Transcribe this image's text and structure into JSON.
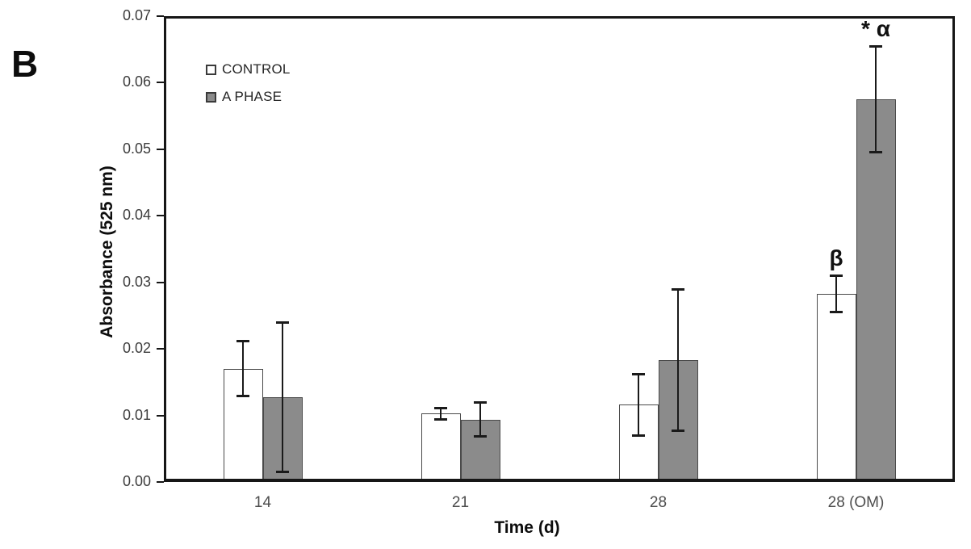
{
  "panel_label": "B",
  "chart_data": {
    "type": "bar",
    "title": "",
    "xlabel": "Time (d)",
    "ylabel": "Absorbance (525 nm)",
    "categories": [
      "14",
      "21",
      "28",
      "28 (OM)"
    ],
    "series": [
      {
        "name": "CONTROL",
        "fill": "#ffffff",
        "values": [
          0.017,
          0.0103,
          0.0116,
          0.0283
        ],
        "errors": [
          0.0042,
          0.0009,
          0.0047,
          0.0028
        ],
        "annotations": [
          "",
          "",
          "",
          "β"
        ]
      },
      {
        "name": "A PHASE",
        "fill": "#8b8b8b",
        "values": [
          0.0127,
          0.0094,
          0.0183,
          0.0575
        ],
        "errors": [
          0.0113,
          0.0026,
          0.0107,
          0.008
        ],
        "annotations": [
          "",
          "",
          "",
          "* α"
        ]
      }
    ],
    "ylim": [
      0,
      0.07
    ],
    "ytick_step": 0.01,
    "ytick_labels": [
      "0.00",
      "0.01",
      "0.02",
      "0.03",
      "0.04",
      "0.05",
      "0.06",
      "0.07"
    ],
    "legend_position": "top-left-inside",
    "grid": false
  },
  "colors": {
    "bar_outline": "#4a4a4a",
    "axis": "#161616",
    "error_bar": "#1a1a1a",
    "tick_label": "#3d3d3d",
    "category_label": "#4d4d4d",
    "legend_text": "#262626",
    "annotation": "#111111"
  }
}
